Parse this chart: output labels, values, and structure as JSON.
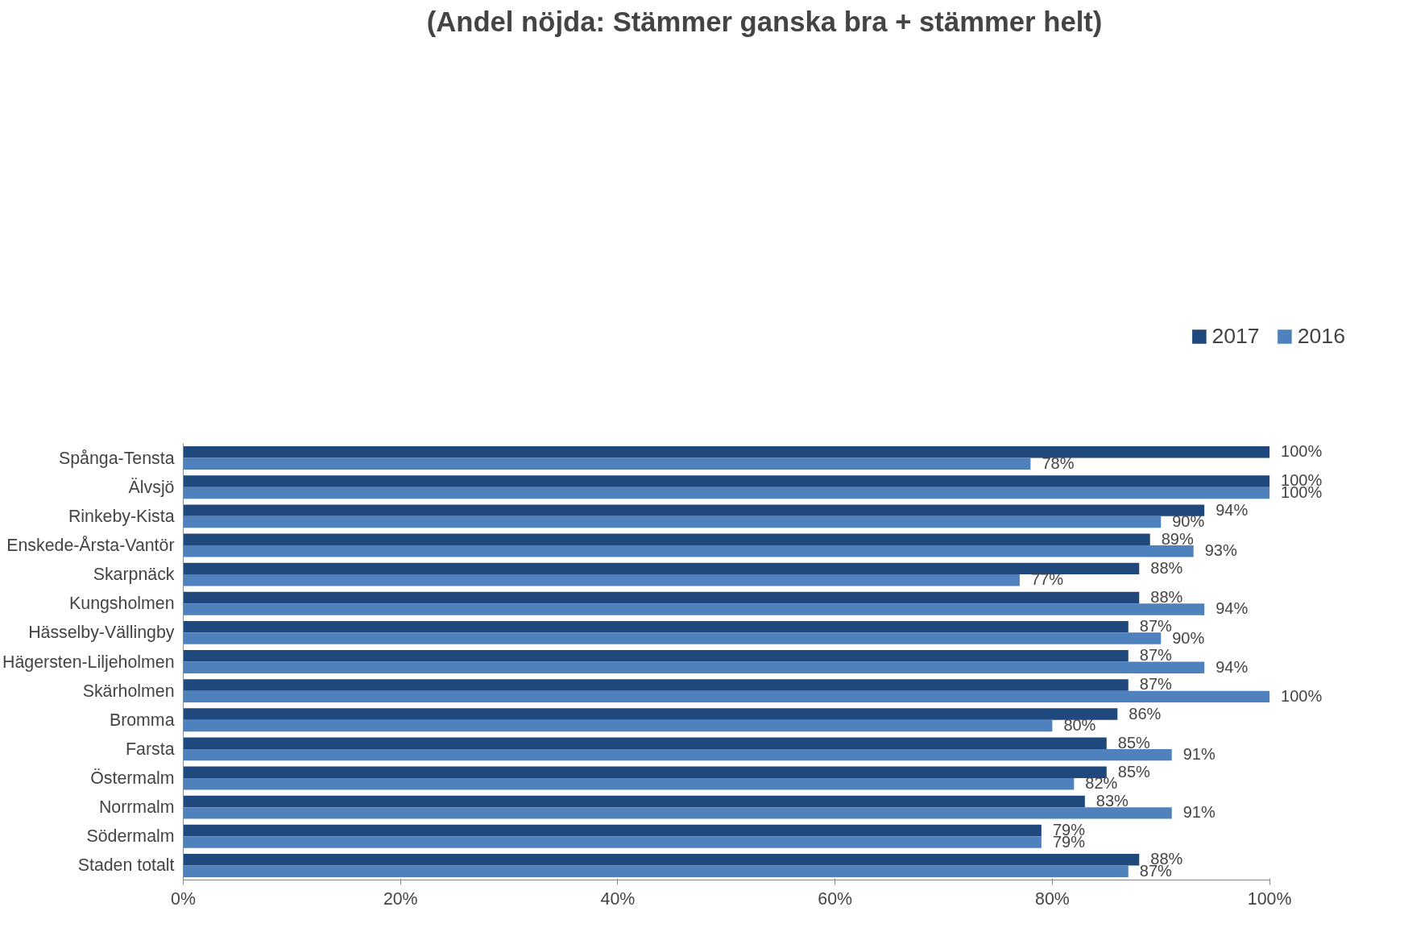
{
  "chart_data": {
    "type": "bar",
    "orientation": "horizontal",
    "title": "(Andel nöjda: Stämmer ganska bra + stämmer helt)",
    "categories": [
      "Spånga-Tensta",
      "Älvsjö",
      "Rinkeby-Kista",
      "Enskede-Årsta-Vantör",
      "Skarpnäck",
      "Kungsholmen",
      "Hässelby-Vällingby",
      "Hägersten-Liljeholmen",
      "Skärholmen",
      "Bromma",
      "Farsta",
      "Östermalm",
      "Norrmalm",
      "Södermalm",
      "Staden totalt"
    ],
    "series": [
      {
        "name": "2017",
        "color": "#1f497d",
        "values": [
          100,
          100,
          94,
          89,
          88,
          88,
          87,
          87,
          87,
          86,
          85,
          85,
          83,
          79,
          88
        ],
        "value_labels": [
          "100%",
          "100%",
          "94%",
          "89%",
          "88%",
          "88%",
          "87%",
          "87%",
          "87%",
          "86%",
          "85%",
          "85%",
          "83%",
          "79%",
          "88%"
        ]
      },
      {
        "name": "2016",
        "color": "#4f81bd",
        "values": [
          78,
          100,
          90,
          93,
          77,
          94,
          90,
          94,
          100,
          80,
          91,
          82,
          91,
          79,
          87
        ],
        "value_labels": [
          "78%",
          "100%",
          "90%",
          "93%",
          "77%",
          "94%",
          "90%",
          "94%",
          "100%",
          "80%",
          "91%",
          "82%",
          "91%",
          "79%",
          "87%"
        ]
      }
    ],
    "xlim": [
      0,
      100
    ],
    "xticks": [
      {
        "value": 0,
        "label": "0%"
      },
      {
        "value": 20,
        "label": "20%"
      },
      {
        "value": 40,
        "label": "40%"
      },
      {
        "value": 60,
        "label": "60%"
      },
      {
        "value": 80,
        "label": "80%"
      },
      {
        "value": 100,
        "label": "100%"
      }
    ],
    "grid": false,
    "legend": "top right"
  }
}
